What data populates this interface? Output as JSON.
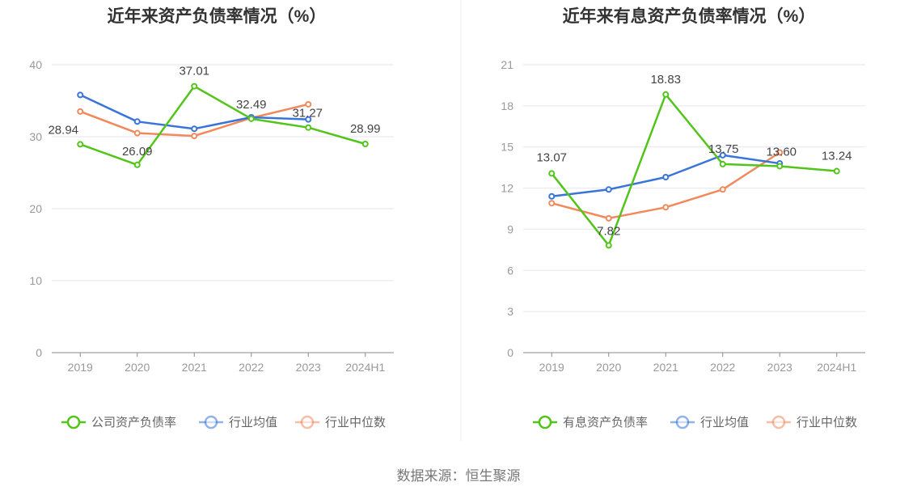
{
  "source": "数据来源：恒生聚源",
  "chart_data": [
    {
      "type": "line",
      "title": "近年来资产负债率情况（%）",
      "categories": [
        "2019",
        "2020",
        "2021",
        "2022",
        "2023",
        "2024H1"
      ],
      "ylim": [
        0,
        40
      ],
      "yticks": [
        0,
        10,
        20,
        30,
        40
      ],
      "grid": true,
      "legend_position": "bottom",
      "series": [
        {
          "name": "公司资产负债率",
          "color": "#52c41a",
          "values": [
            28.94,
            26.09,
            37.01,
            32.49,
            31.27,
            28.99
          ],
          "labels": [
            "28.94",
            "26.09",
            "37.01",
            "32.49",
            "31.27",
            "28.99"
          ]
        },
        {
          "name": "行业均值",
          "color": "#3a74d9",
          "values": [
            35.8,
            32.1,
            31.1,
            32.7,
            32.4,
            null
          ]
        },
        {
          "name": "行业中位数",
          "color": "#f08a5d",
          "values": [
            33.5,
            30.5,
            30.1,
            32.6,
            34.5,
            null
          ]
        }
      ]
    },
    {
      "type": "line",
      "title": "近年来有息资产负债率情况（%）",
      "categories": [
        "2019",
        "2020",
        "2021",
        "2022",
        "2023",
        "2024H1"
      ],
      "ylim": [
        0,
        21
      ],
      "yticks": [
        0,
        3,
        6,
        9,
        12,
        15,
        18,
        21
      ],
      "grid": true,
      "legend_position": "bottom",
      "series": [
        {
          "name": "有息资产负债率",
          "color": "#52c41a",
          "values": [
            13.07,
            7.82,
            18.83,
            13.75,
            13.6,
            13.24
          ],
          "labels": [
            "13.07",
            "7.82",
            "18.83",
            "13.75",
            "13.60",
            "13.24"
          ]
        },
        {
          "name": "行业均值",
          "color": "#3a74d9",
          "values": [
            11.4,
            11.9,
            12.8,
            14.4,
            13.8,
            null
          ]
        },
        {
          "name": "行业中位数",
          "color": "#f08a5d",
          "values": [
            10.9,
            9.8,
            10.6,
            11.9,
            14.6,
            null
          ]
        }
      ]
    }
  ]
}
